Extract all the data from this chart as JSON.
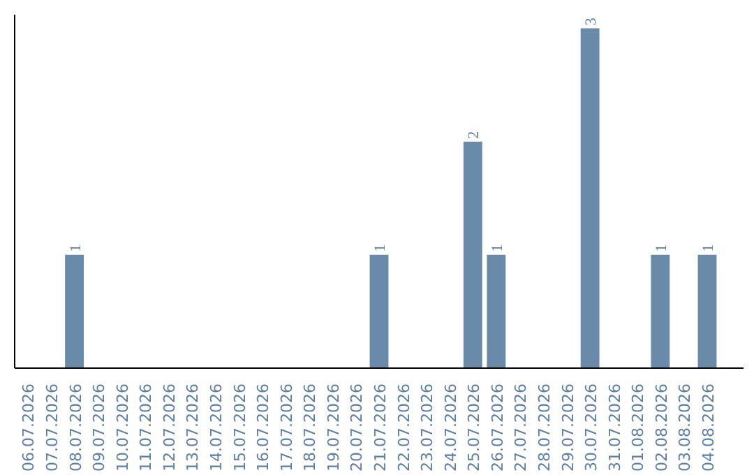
{
  "chart_data": {
    "type": "bar",
    "categories": [
      "06.07.2026",
      "07.07.2026",
      "08.07.2026",
      "09.07.2026",
      "10.07.2026",
      "11.07.2026",
      "12.07.2026",
      "13.07.2026",
      "14.07.2026",
      "15.07.2026",
      "16.07.2026",
      "17.07.2026",
      "18.07.2026",
      "19.07.2026",
      "20.07.2026",
      "21.07.2026",
      "22.07.2026",
      "23.07.2026",
      "24.07.2026",
      "25.07.2026",
      "26.07.2026",
      "27.07.2026",
      "28.07.2026",
      "29.07.2026",
      "30.07.2026",
      "31.07.2026",
      "01.08.2026",
      "02.08.2026",
      "03.08.2026",
      "04.08.2026"
    ],
    "values": [
      0,
      0,
      1,
      0,
      0,
      0,
      0,
      0,
      0,
      0,
      0,
      0,
      0,
      0,
      0,
      1,
      0,
      0,
      0,
      2,
      1,
      0,
      0,
      0,
      3,
      0,
      0,
      1,
      0,
      1
    ],
    "value_labels": [
      null,
      null,
      "1",
      null,
      null,
      null,
      null,
      null,
      null,
      null,
      null,
      null,
      null,
      null,
      null,
      "1",
      null,
      null,
      null,
      "2",
      "1",
      null,
      null,
      null,
      "3",
      null,
      null,
      "1",
      null,
      "1"
    ],
    "color": "#6a8aaa",
    "grid": false,
    "tick_labels": "x"
  }
}
